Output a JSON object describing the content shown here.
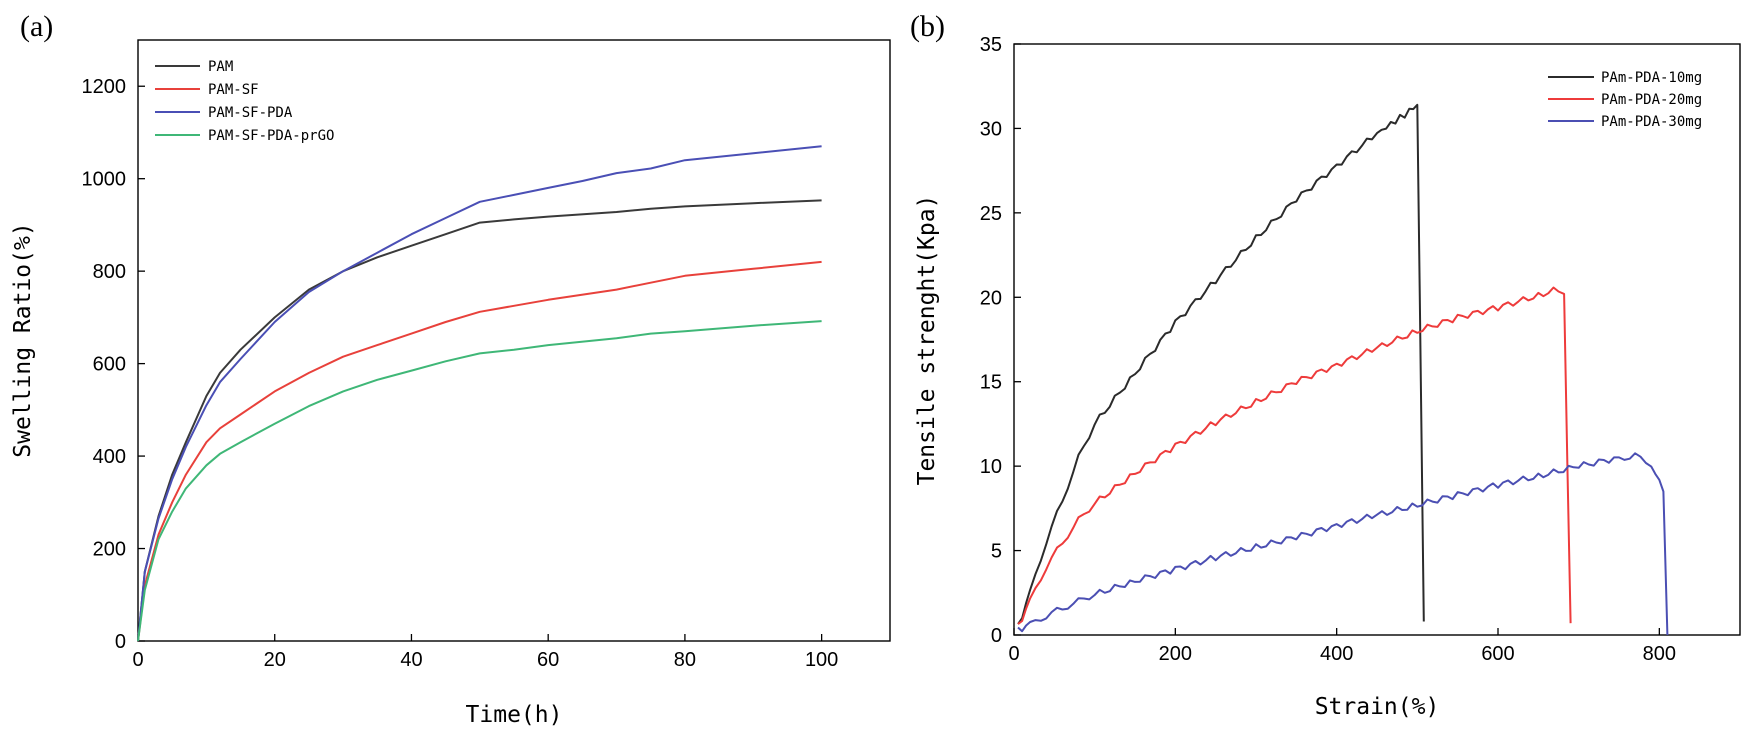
{
  "chart_data": [
    {
      "panel_label": "(a)",
      "type": "line",
      "title": "",
      "xlabel": "Time(h)",
      "ylabel": "Swelling Ratio(%)",
      "xlim": [
        0,
        110
      ],
      "ylim": [
        0,
        1300
      ],
      "xticks": [
        0,
        20,
        40,
        60,
        80,
        100
      ],
      "yticks": [
        0,
        200,
        400,
        600,
        800,
        1000,
        1200
      ],
      "legend_position": "top-left",
      "series": [
        {
          "name": "PAM",
          "color": "#3a3a3a",
          "x": [
            0,
            1,
            3,
            5,
            7,
            10,
            12,
            15,
            20,
            25,
            30,
            35,
            40,
            45,
            50,
            55,
            60,
            70,
            75,
            80,
            90,
            100
          ],
          "y": [
            0,
            150,
            270,
            360,
            430,
            530,
            580,
            630,
            700,
            760,
            800,
            830,
            855,
            880,
            905,
            912,
            918,
            928,
            935,
            940,
            947,
            953
          ]
        },
        {
          "name": "PAM-SF",
          "color": "#e8413b",
          "x": [
            0,
            1,
            3,
            5,
            7,
            10,
            12,
            15,
            20,
            25,
            30,
            35,
            40,
            45,
            50,
            55,
            60,
            70,
            75,
            80,
            90,
            100
          ],
          "y": [
            0,
            120,
            230,
            300,
            360,
            430,
            460,
            490,
            540,
            580,
            615,
            640,
            665,
            690,
            712,
            725,
            738,
            760,
            775,
            790,
            805,
            820
          ]
        },
        {
          "name": "PAM-SF-PDA",
          "color": "#4a4fb5",
          "x": [
            0,
            1,
            3,
            5,
            7,
            10,
            12,
            15,
            20,
            25,
            30,
            35,
            40,
            45,
            50,
            55,
            60,
            65,
            70,
            75,
            80,
            90,
            100
          ],
          "y": [
            0,
            150,
            265,
            350,
            420,
            510,
            560,
            610,
            690,
            755,
            800,
            840,
            880,
            915,
            950,
            965,
            980,
            995,
            1012,
            1022,
            1040,
            1055,
            1070
          ]
        },
        {
          "name": "PAM-SF-PDA-prGO",
          "color": "#3fb777",
          "x": [
            0,
            1,
            3,
            5,
            7,
            10,
            12,
            15,
            20,
            25,
            30,
            35,
            40,
            45,
            50,
            55,
            60,
            70,
            75,
            80,
            90,
            100
          ],
          "y": [
            0,
            110,
            220,
            280,
            330,
            380,
            405,
            430,
            470,
            508,
            540,
            565,
            585,
            605,
            622,
            630,
            640,
            655,
            665,
            670,
            682,
            692
          ]
        }
      ]
    },
    {
      "panel_label": "(b)",
      "type": "line",
      "title": "",
      "xlabel": "Strain(%)",
      "ylabel": "Tensile strenght(Kpa)",
      "xlim": [
        0,
        900
      ],
      "ylim": [
        0,
        35
      ],
      "xticks": [
        0,
        200,
        400,
        600,
        800
      ],
      "yticks": [
        0,
        5,
        10,
        15,
        20,
        25,
        30,
        35
      ],
      "legend_position": "top-right",
      "series": [
        {
          "name": "PAm-PDA-10mg",
          "color": "#2b2b2b",
          "x": [
            5,
            20,
            40,
            60,
            80,
            100,
            150,
            200,
            250,
            300,
            350,
            400,
            450,
            490,
            500,
            503,
            508
          ],
          "y": [
            0.5,
            2.5,
            5.5,
            8,
            10.5,
            12.5,
            15.5,
            18.5,
            21,
            23.5,
            25.8,
            27.8,
            29.7,
            31,
            31.4,
            20,
            0.8
          ]
        },
        {
          "name": "PAm-PDA-20mg",
          "color": "#ee3b3b",
          "x": [
            5,
            20,
            40,
            60,
            80,
            100,
            150,
            200,
            250,
            300,
            350,
            400,
            450,
            500,
            550,
            600,
            650,
            675,
            682,
            686,
            690
          ],
          "y": [
            0.5,
            2,
            4,
            5.5,
            6.8,
            7.8,
            9.6,
            11.2,
            12.6,
            13.8,
            15,
            16,
            17,
            18,
            18.8,
            19.4,
            20.1,
            20.5,
            20.2,
            10,
            0.7
          ]
        },
        {
          "name": "PAm-PDA-30mg",
          "color": "#4b4fb3",
          "x": [
            5,
            20,
            40,
            60,
            80,
            100,
            150,
            200,
            250,
            300,
            350,
            400,
            450,
            500,
            550,
            600,
            650,
            700,
            750,
            770,
            790,
            805,
            810
          ],
          "y": [
            0.3,
            0.6,
            1.1,
            1.6,
            2,
            2.4,
            3.2,
            3.9,
            4.6,
            5.2,
            5.8,
            6.5,
            7.1,
            7.7,
            8.3,
            8.9,
            9.4,
            10,
            10.5,
            10.6,
            10.1,
            8.5,
            0
          ]
        }
      ]
    }
  ]
}
